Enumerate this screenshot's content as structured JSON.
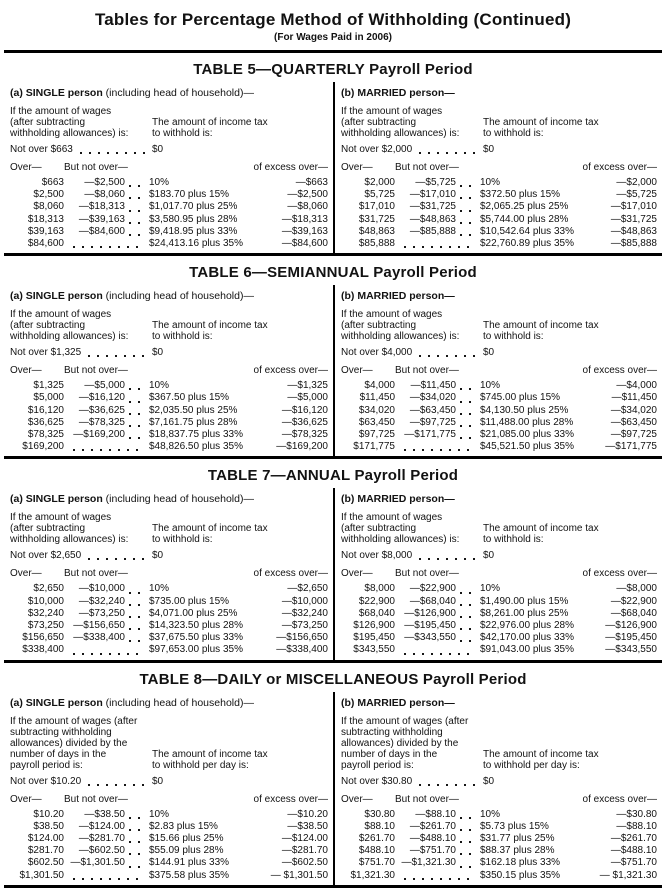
{
  "page": {
    "title": "Tables for Percentage Method of Withholding (Continued)",
    "subtitle": "(For Wages Paid in 2006)"
  },
  "tables": [
    {
      "title": "TABLE 5—QUARTERLY Payroll Period",
      "panels": [
        {
          "label_bold": "(a) SINGLE person",
          "label_rest": " (including head of household)—",
          "wage_desc": "If the amount of wages\n(after subtracting\nwithholding allowances) is:",
          "tax_desc": "The amount of income tax\nto withhold is:",
          "not_over_label": "Not over $663",
          "not_over_value": "$0",
          "headers": {
            "over": "Over—",
            "but": "But not over—",
            "excess": "of excess over—"
          },
          "rows": [
            {
              "over": "$663",
              "but": "—$2,500",
              "tax": "10%",
              "excess": "—$663"
            },
            {
              "over": "$2,500",
              "but": "—$8,060",
              "tax": "$183.70 plus 15%",
              "excess": "—$2,500"
            },
            {
              "over": "$8,060",
              "but": "—$18,313",
              "tax": "$1,017.70 plus 25%",
              "excess": "—$8,060"
            },
            {
              "over": "$18,313",
              "but": "—$39,163",
              "tax": "$3,580.95 plus 28%",
              "excess": "—$18,313"
            },
            {
              "over": "$39,163",
              "but": "—$84,600",
              "tax": "$9,418.95 plus 33%",
              "excess": "—$39,163"
            },
            {
              "over": "$84,600",
              "but": "",
              "tax": "$24,413.16 plus 35%",
              "excess": "—$84,600"
            }
          ]
        },
        {
          "label_bold": "(b) MARRIED person—",
          "label_rest": "",
          "wage_desc": "If the amount of wages\n(after subtracting\nwithholding allowances) is:",
          "tax_desc": "The amount of income tax\nto withhold is:",
          "not_over_label": "Not over $2,000",
          "not_over_value": "$0",
          "headers": {
            "over": "Over—",
            "but": "But not over—",
            "excess": "of excess over—"
          },
          "rows": [
            {
              "over": "$2,000",
              "but": "—$5,725",
              "tax": "10%",
              "excess": "—$2,000"
            },
            {
              "over": "$5,725",
              "but": "—$17,010",
              "tax": "$372.50 plus 15%",
              "excess": "—$5,725"
            },
            {
              "over": "$17,010",
              "but": "—$31,725",
              "tax": "$2,065.25 plus 25%",
              "excess": "—$17,010"
            },
            {
              "over": "$31,725",
              "but": "—$48,863",
              "tax": "$5,744.00 plus 28%",
              "excess": "—$31,725"
            },
            {
              "over": "$48,863",
              "but": "—$85,888",
              "tax": "$10,542.64 plus 33%",
              "excess": "—$48,863"
            },
            {
              "over": "$85,888",
              "but": "",
              "tax": "$22,760.89 plus 35%",
              "excess": "—$85,888"
            }
          ]
        }
      ]
    },
    {
      "title": "TABLE 6—SEMIANNUAL Payroll Period",
      "panels": [
        {
          "label_bold": "(a) SINGLE person",
          "label_rest": " (including head of household)—",
          "wage_desc": "If the amount of wages\n(after subtracting\nwithholding allowances) is:",
          "tax_desc": "The amount of income tax\nto withhold is:",
          "not_over_label": "Not over $1,325",
          "not_over_value": "$0",
          "headers": {
            "over": "Over—",
            "but": "But not over—",
            "excess": "of excess over—"
          },
          "rows": [
            {
              "over": "$1,325",
              "but": "—$5,000",
              "tax": "10%",
              "excess": "—$1,325"
            },
            {
              "over": "$5,000",
              "but": "—$16,120",
              "tax": "$367.50 plus 15%",
              "excess": "—$5,000"
            },
            {
              "over": "$16,120",
              "but": "—$36,625",
              "tax": "$2,035.50 plus 25%",
              "excess": "—$16,120"
            },
            {
              "over": "$36,625",
              "but": "—$78,325",
              "tax": "$7,161.75 plus 28%",
              "excess": "—$36,625"
            },
            {
              "over": "$78,325",
              "but": "—$169,200",
              "tax": "$18,837.75 plus 33%",
              "excess": "—$78,325"
            },
            {
              "over": "$169,200",
              "but": "",
              "tax": "$48,826.50 plus 35%",
              "excess": "—$169,200"
            }
          ]
        },
        {
          "label_bold": "(b) MARRIED person—",
          "label_rest": "",
          "wage_desc": "If the amount of wages\n(after subtracting\nwithholding allowances) is:",
          "tax_desc": "The amount of income tax\nto withhold is:",
          "not_over_label": "Not over $4,000",
          "not_over_value": "$0",
          "headers": {
            "over": "Over—",
            "but": "But not over—",
            "excess": "of excess over—"
          },
          "rows": [
            {
              "over": "$4,000",
              "but": "—$11,450",
              "tax": "10%",
              "excess": "—$4,000"
            },
            {
              "over": "$11,450",
              "but": "—$34,020",
              "tax": "$745.00 plus 15%",
              "excess": "—$11,450"
            },
            {
              "over": "$34,020",
              "but": "—$63,450",
              "tax": "$4,130.50 plus 25%",
              "excess": "—$34,020"
            },
            {
              "over": "$63,450",
              "but": "—$97,725",
              "tax": "$11,488.00 plus 28%",
              "excess": "—$63,450"
            },
            {
              "over": "$97,725",
              "but": "—$171,775",
              "tax": "$21,085.00 plus 33%",
              "excess": "—$97,725"
            },
            {
              "over": "$171,775",
              "but": "",
              "tax": "$45,521.50 plus 35%",
              "excess": "—$171,775"
            }
          ]
        }
      ]
    },
    {
      "title": "TABLE 7—ANNUAL Payroll Period",
      "panels": [
        {
          "label_bold": "(a) SINGLE person",
          "label_rest": " (including head of household)—",
          "wage_desc": "If the amount of wages\n(after subtracting\nwithholding allowances) is:",
          "tax_desc": "The amount of income tax\nto withhold is:",
          "not_over_label": "Not over $2,650",
          "not_over_value": "$0",
          "headers": {
            "over": "Over—",
            "but": "But not over—",
            "excess": "of excess over—"
          },
          "rows": [
            {
              "over": "$2,650",
              "but": "—$10,000",
              "tax": "10%",
              "excess": "—$2,650"
            },
            {
              "over": "$10,000",
              "but": "—$32,240",
              "tax": "$735.00 plus 15%",
              "excess": "—$10,000"
            },
            {
              "over": "$32,240",
              "but": "—$73,250",
              "tax": "$4,071.00 plus 25%",
              "excess": "—$32,240"
            },
            {
              "over": "$73,250",
              "but": "—$156,650",
              "tax": "$14,323.50 plus 28%",
              "excess": "—$73,250"
            },
            {
              "over": "$156,650",
              "but": "—$338,400",
              "tax": "$37,675.50 plus 33%",
              "excess": "—$156,650"
            },
            {
              "over": "$338,400",
              "but": "",
              "tax": "$97,653.00 plus 35%",
              "excess": "—$338,400"
            }
          ]
        },
        {
          "label_bold": "(b) MARRIED person—",
          "label_rest": "",
          "wage_desc": "If the amount of wages\n(after subtracting\nwithholding allowances) is:",
          "tax_desc": "The amount of income tax\nto withhold is:",
          "not_over_label": "Not over $8,000",
          "not_over_value": "$0",
          "headers": {
            "over": "Over—",
            "but": "But not over—",
            "excess": "of excess over—"
          },
          "rows": [
            {
              "over": "$8,000",
              "but": "—$22,900",
              "tax": "10%",
              "excess": "—$8,000"
            },
            {
              "over": "$22,900",
              "but": "—$68,040",
              "tax": "$1,490.00 plus 15%",
              "excess": "—$22,900"
            },
            {
              "over": "$68,040",
              "but": "—$126,900",
              "tax": "$8,261.00 plus 25%",
              "excess": "—$68,040"
            },
            {
              "over": "$126,900",
              "but": "—$195,450",
              "tax": "$22,976.00 plus 28%",
              "excess": "—$126,900"
            },
            {
              "over": "$195,450",
              "but": "—$343,550",
              "tax": "$42,170.00 plus 33%",
              "excess": "—$195,450"
            },
            {
              "over": "$343,550",
              "but": "",
              "tax": "$91,043.00 plus 35%",
              "excess": "—$343,550"
            }
          ]
        }
      ]
    },
    {
      "title": "TABLE 8—DAILY or MISCELLANEOUS Payroll Period",
      "panels": [
        {
          "label_bold": "(a) SINGLE person",
          "label_rest": " (including head of household)—",
          "wage_desc": "If the amount of wages (after\nsubtracting withholding\nallowances) divided by the\nnumber of days in the\npayroll period is:",
          "tax_desc": "The amount of income tax\nto withhold per day is:",
          "not_over_label": "Not over $10.20",
          "not_over_value": "$0",
          "headers": {
            "over": "Over—",
            "but": "But not over—",
            "excess": "of excess over—"
          },
          "rows": [
            {
              "over": "$10.20",
              "but": "—$38.50",
              "tax": "10%",
              "excess": "—$10.20"
            },
            {
              "over": "$38.50",
              "but": "—$124.00",
              "tax": "$2.83 plus 15%",
              "excess": "—$38.50"
            },
            {
              "over": "$124.00",
              "but": "—$281.70",
              "tax": "$15.66 plus 25%",
              "excess": "—$124.00"
            },
            {
              "over": "$281.70",
              "but": "—$602.50",
              "tax": "$55.09 plus 28%",
              "excess": "—$281.70"
            },
            {
              "over": "$602.50",
              "but": "—$1,301.50",
              "tax": "$144.91 plus 33%",
              "excess": "—$602.50"
            },
            {
              "over": "$1,301.50",
              "but": "",
              "tax": "$375.58 plus 35%",
              "excess": "— $1,301.50"
            }
          ]
        },
        {
          "label_bold": "(b) MARRIED person—",
          "label_rest": "",
          "wage_desc": "If the amount of wages (after\nsubtracting withholding\nallowances) divided by the\nnumber of days in the\npayroll period is:",
          "tax_desc": "The amount of income tax\nto withhold per day is:",
          "not_over_label": "Not over $30.80",
          "not_over_value": "$0",
          "headers": {
            "over": "Over—",
            "but": "But not over—",
            "excess": "of excess over—"
          },
          "rows": [
            {
              "over": "$30.80",
              "but": "—$88.10",
              "tax": "10%",
              "excess": "—$30.80"
            },
            {
              "over": "$88.10",
              "but": "—$261.70",
              "tax": "$5.73 plus 15%",
              "excess": "—$88.10"
            },
            {
              "over": "$261.70",
              "but": "—$488.10",
              "tax": "$31.77 plus 25%",
              "excess": "—$261.70"
            },
            {
              "over": "$488.10",
              "but": "—$751.70",
              "tax": "$88.37 plus 28%",
              "excess": "—$488.10"
            },
            {
              "over": "$751.70",
              "but": "—$1,321.30",
              "tax": "$162.18 plus 33%",
              "excess": "—$751.70"
            },
            {
              "over": "$1,321.30",
              "but": "",
              "tax": "$350.15 plus 35%",
              "excess": "— $1,321.30"
            }
          ]
        }
      ]
    }
  ]
}
